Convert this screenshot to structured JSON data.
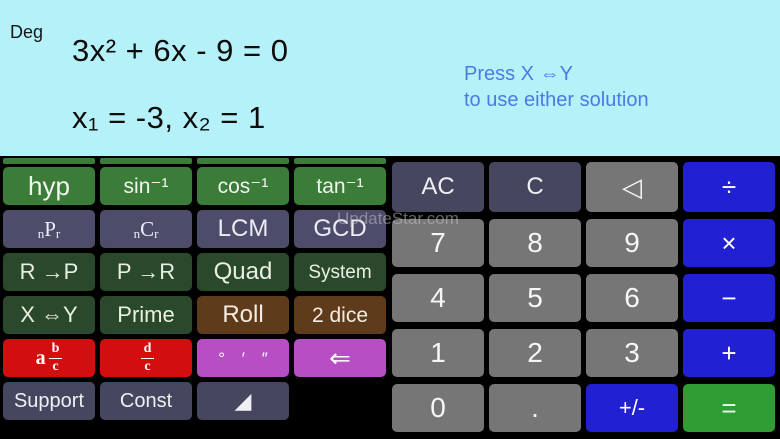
{
  "display": {
    "mode": "Deg",
    "equation": "3x² + 6x - 9 = 0",
    "solution": "x₁ = -3, x₂ = 1",
    "hint": {
      "line1": "Press X ⇔Y",
      "line2": "to use either solution"
    }
  },
  "watermark": "UpdateStar.com",
  "colors": {
    "display_bg": "#b5f1f9",
    "hint_blue": "#4c7ae2",
    "bright_green": "#3a7c38",
    "dark_green": "#2a482b",
    "slate": "#4d4d6b",
    "slate_dark": "#46465f",
    "brown": "#5e3c1b",
    "red": "#d30e0e",
    "magenta": "#b54fc3",
    "key_gray": "#767676",
    "key_blue": "#2220d3",
    "equals_green": "#2f9d33"
  },
  "keys": {
    "hyp": "hyp",
    "sin_inv": "sin⁻¹",
    "cos_inv": "cos⁻¹",
    "tan_inv": "tan⁻¹",
    "npr_sub1": "n",
    "npr_main": "P",
    "npr_sub2": "r",
    "ncr_sub1": "n",
    "ncr_main": "C",
    "ncr_sub2": "r",
    "lcm": "LCM",
    "gcd": "GCD",
    "rect_to_polar": "R →P",
    "polar_to_rect": "P →R",
    "quad": "Quad",
    "system": "System",
    "x_swap_y": "X ⇔Y",
    "prime": "Prime",
    "roll": "Roll",
    "two_dice": "2 dice",
    "abc_a": "a",
    "abc_num": "b",
    "abc_den": "c",
    "dc_num": "d",
    "dc_den": "c",
    "dms": "° ′ ″",
    "back_arrow": "⇐",
    "support": "Support",
    "const": "Const",
    "corner_triangle": "◢",
    "ac": "AC",
    "c": "C",
    "backspace": "◁",
    "divide": "÷",
    "multiply": "×",
    "subtract": "−",
    "add": "+",
    "d7": "7",
    "d8": "8",
    "d9": "9",
    "d4": "4",
    "d5": "5",
    "d6": "6",
    "d1": "1",
    "d2": "2",
    "d3": "3",
    "d0": "0",
    "dot": ".",
    "plus_minus": "+/-",
    "equals": "="
  }
}
